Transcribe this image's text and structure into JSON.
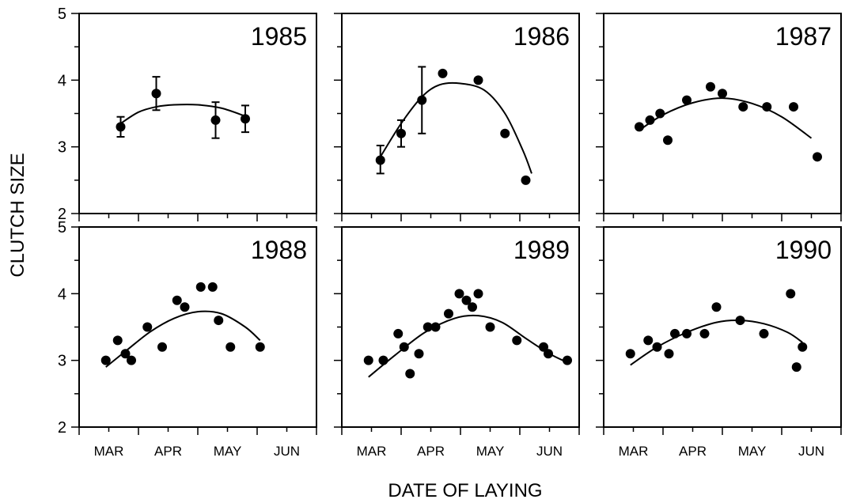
{
  "chart_data": {
    "type": "scatter",
    "xlabel": "DATE OF LAYING",
    "ylabel": "CLUTCH SIZE",
    "ylim": [
      2,
      5
    ],
    "yticks": [
      2,
      3,
      4,
      5
    ],
    "ytick_labels": [
      "2",
      "3",
      "4",
      "5"
    ],
    "xlim": [
      0,
      4
    ],
    "month_labels": [
      "MAR",
      "APR",
      "MAY",
      "JUN"
    ],
    "grid": false,
    "panels": [
      {
        "title": "1985",
        "points": [
          [
            0.7,
            3.3
          ],
          [
            1.3,
            3.8
          ],
          [
            2.3,
            3.4
          ],
          [
            2.8,
            3.42
          ]
        ],
        "error_bars": [
          [
            3.15,
            3.45
          ],
          [
            3.55,
            4.05
          ],
          [
            3.13,
            3.67
          ],
          [
            3.22,
            3.62
          ]
        ],
        "fit": [
          [
            0.7,
            3.35
          ],
          [
            1.0,
            3.52
          ],
          [
            1.3,
            3.6
          ],
          [
            1.6,
            3.63
          ],
          [
            2.0,
            3.63
          ],
          [
            2.4,
            3.58
          ],
          [
            2.8,
            3.46
          ]
        ]
      },
      {
        "title": "1986",
        "points": [
          [
            0.65,
            2.8
          ],
          [
            1.0,
            3.2
          ],
          [
            1.35,
            3.7
          ],
          [
            1.7,
            4.1
          ],
          [
            2.3,
            4.0
          ],
          [
            2.75,
            3.2
          ],
          [
            3.1,
            2.5
          ]
        ],
        "error_bars": [
          [
            2.6,
            3.02
          ],
          [
            3.0,
            3.4
          ],
          [
            3.2,
            4.2
          ],
          null,
          null,
          null,
          null
        ],
        "fit": [
          [
            0.65,
            2.85
          ],
          [
            1.0,
            3.35
          ],
          [
            1.35,
            3.75
          ],
          [
            1.65,
            3.93
          ],
          [
            2.0,
            3.95
          ],
          [
            2.4,
            3.85
          ],
          [
            2.75,
            3.5
          ],
          [
            3.05,
            2.95
          ],
          [
            3.2,
            2.6
          ]
        ]
      },
      {
        "title": "1987",
        "points": [
          [
            0.6,
            3.3
          ],
          [
            0.78,
            3.4
          ],
          [
            0.95,
            3.5
          ],
          [
            1.08,
            3.1
          ],
          [
            1.4,
            3.7
          ],
          [
            1.8,
            3.9
          ],
          [
            2.0,
            3.8
          ],
          [
            2.35,
            3.6
          ],
          [
            2.75,
            3.6
          ],
          [
            3.2,
            3.6
          ],
          [
            3.6,
            2.85
          ]
        ],
        "error_bars": [],
        "fit": [
          [
            0.6,
            3.25
          ],
          [
            1.0,
            3.48
          ],
          [
            1.5,
            3.66
          ],
          [
            2.0,
            3.73
          ],
          [
            2.5,
            3.65
          ],
          [
            3.0,
            3.45
          ],
          [
            3.5,
            3.13
          ]
        ]
      },
      {
        "title": "1988",
        "points": [
          [
            0.45,
            3.0
          ],
          [
            0.65,
            3.3
          ],
          [
            0.78,
            3.1
          ],
          [
            0.88,
            3.0
          ],
          [
            1.15,
            3.5
          ],
          [
            1.4,
            3.2
          ],
          [
            1.65,
            3.9
          ],
          [
            1.78,
            3.8
          ],
          [
            2.05,
            4.1
          ],
          [
            2.25,
            4.1
          ],
          [
            2.35,
            3.6
          ],
          [
            2.55,
            3.2
          ],
          [
            3.05,
            3.2
          ]
        ],
        "error_bars": [],
        "fit": [
          [
            0.45,
            2.9
          ],
          [
            0.8,
            3.15
          ],
          [
            1.2,
            3.43
          ],
          [
            1.6,
            3.63
          ],
          [
            2.0,
            3.73
          ],
          [
            2.4,
            3.7
          ],
          [
            2.8,
            3.5
          ],
          [
            3.05,
            3.3
          ]
        ]
      },
      {
        "title": "1989",
        "points": [
          [
            0.45,
            3.0
          ],
          [
            0.7,
            3.0
          ],
          [
            0.95,
            3.4
          ],
          [
            1.05,
            3.2
          ],
          [
            1.15,
            2.8
          ],
          [
            1.3,
            3.1
          ],
          [
            1.45,
            3.5
          ],
          [
            1.58,
            3.5
          ],
          [
            1.8,
            3.7
          ],
          [
            1.98,
            4.0
          ],
          [
            2.1,
            3.9
          ],
          [
            2.2,
            3.8
          ],
          [
            2.3,
            4.0
          ],
          [
            2.5,
            3.5
          ],
          [
            2.95,
            3.3
          ],
          [
            3.4,
            3.2
          ],
          [
            3.48,
            3.1
          ],
          [
            3.8,
            3.0
          ]
        ],
        "error_bars": [],
        "fit": [
          [
            0.45,
            2.75
          ],
          [
            0.9,
            3.08
          ],
          [
            1.4,
            3.42
          ],
          [
            1.9,
            3.63
          ],
          [
            2.3,
            3.67
          ],
          [
            2.7,
            3.57
          ],
          [
            3.1,
            3.33
          ],
          [
            3.5,
            3.1
          ],
          [
            3.8,
            2.97
          ]
        ]
      },
      {
        "title": "1990",
        "points": [
          [
            0.45,
            3.1
          ],
          [
            0.75,
            3.3
          ],
          [
            0.9,
            3.2
          ],
          [
            1.1,
            3.1
          ],
          [
            1.2,
            3.4
          ],
          [
            1.4,
            3.4
          ],
          [
            1.7,
            3.4
          ],
          [
            1.9,
            3.8
          ],
          [
            2.3,
            3.6
          ],
          [
            2.7,
            3.4
          ],
          [
            3.15,
            4.0
          ],
          [
            3.25,
            2.9
          ],
          [
            3.35,
            3.2
          ]
        ],
        "error_bars": [],
        "fit": [
          [
            0.45,
            2.93
          ],
          [
            0.9,
            3.2
          ],
          [
            1.4,
            3.42
          ],
          [
            1.9,
            3.57
          ],
          [
            2.3,
            3.6
          ],
          [
            2.7,
            3.55
          ],
          [
            3.1,
            3.42
          ],
          [
            3.35,
            3.27
          ]
        ]
      }
    ]
  }
}
